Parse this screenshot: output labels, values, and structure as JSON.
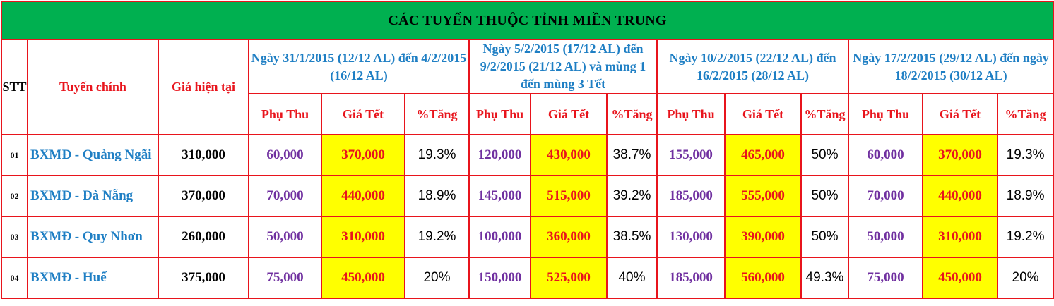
{
  "title": "CÁC TUYẾN THUỘC TỈNH MIỀN TRUNG",
  "headers": {
    "stt": "STT",
    "route": "Tuyến chính",
    "current_price": "Giá hiện tại"
  },
  "periods": [
    "Ngày 31/1/2015 (12/12 AL) đến 4/2/2015 (16/12 AL)",
    "Ngày 5/2/2015 (17/12 AL) đến 9/2/2015 (21/12 AL) và mùng 1 đến mùng 3 Tết",
    "Ngày 10/2/2015 (22/12 AL) đến 16/2/2015 (28/12 AL)",
    "Ngày 17/2/2015 (29/12 AL) đến ngày 18/2/2015 (30/12 AL)"
  ],
  "sub_headers": {
    "surcharge": "Phụ Thu",
    "tet_price": "Giá Tết",
    "increase": "%Tăng"
  },
  "rows": [
    {
      "stt": "01",
      "route": "BXMĐ - Quảng Ngãi",
      "current": "310,000",
      "p": [
        {
          "surcharge": "60,000",
          "tet": "370,000",
          "pct": "19.3%"
        },
        {
          "surcharge": "120,000",
          "tet": "430,000",
          "pct": "38.7%"
        },
        {
          "surcharge": "155,000",
          "tet": "465,000",
          "pct": "50%"
        },
        {
          "surcharge": "60,000",
          "tet": "370,000",
          "pct": "19.3%"
        }
      ]
    },
    {
      "stt": "02",
      "route": "BXMĐ - Đà Nẵng",
      "current": "370,000",
      "p": [
        {
          "surcharge": "70,000",
          "tet": "440,000",
          "pct": "18.9%"
        },
        {
          "surcharge": "145,000",
          "tet": "515,000",
          "pct": "39.2%"
        },
        {
          "surcharge": "185,000",
          "tet": "555,000",
          "pct": "50%"
        },
        {
          "surcharge": "70,000",
          "tet": "440,000",
          "pct": "18.9%"
        }
      ]
    },
    {
      "stt": "03",
      "route": "BXMĐ - Quy Nhơn",
      "current": "260,000",
      "p": [
        {
          "surcharge": "50,000",
          "tet": "310,000",
          "pct": "19.2%"
        },
        {
          "surcharge": "100,000",
          "tet": "360,000",
          "pct": "38.5%"
        },
        {
          "surcharge": "130,000",
          "tet": "390,000",
          "pct": "50%"
        },
        {
          "surcharge": "50,000",
          "tet": "310,000",
          "pct": "19.2%"
        }
      ]
    },
    {
      "stt": "04",
      "route": "BXMĐ - Huế",
      "current": "375,000",
      "p": [
        {
          "surcharge": "75,000",
          "tet": "450,000",
          "pct": "20%"
        },
        {
          "surcharge": "150,000",
          "tet": "525,000",
          "pct": "40%"
        },
        {
          "surcharge": "185,000",
          "tet": "560,000",
          "pct": "49.3%"
        },
        {
          "surcharge": "75,000",
          "tet": "450,000",
          "pct": "20%"
        }
      ]
    }
  ]
}
